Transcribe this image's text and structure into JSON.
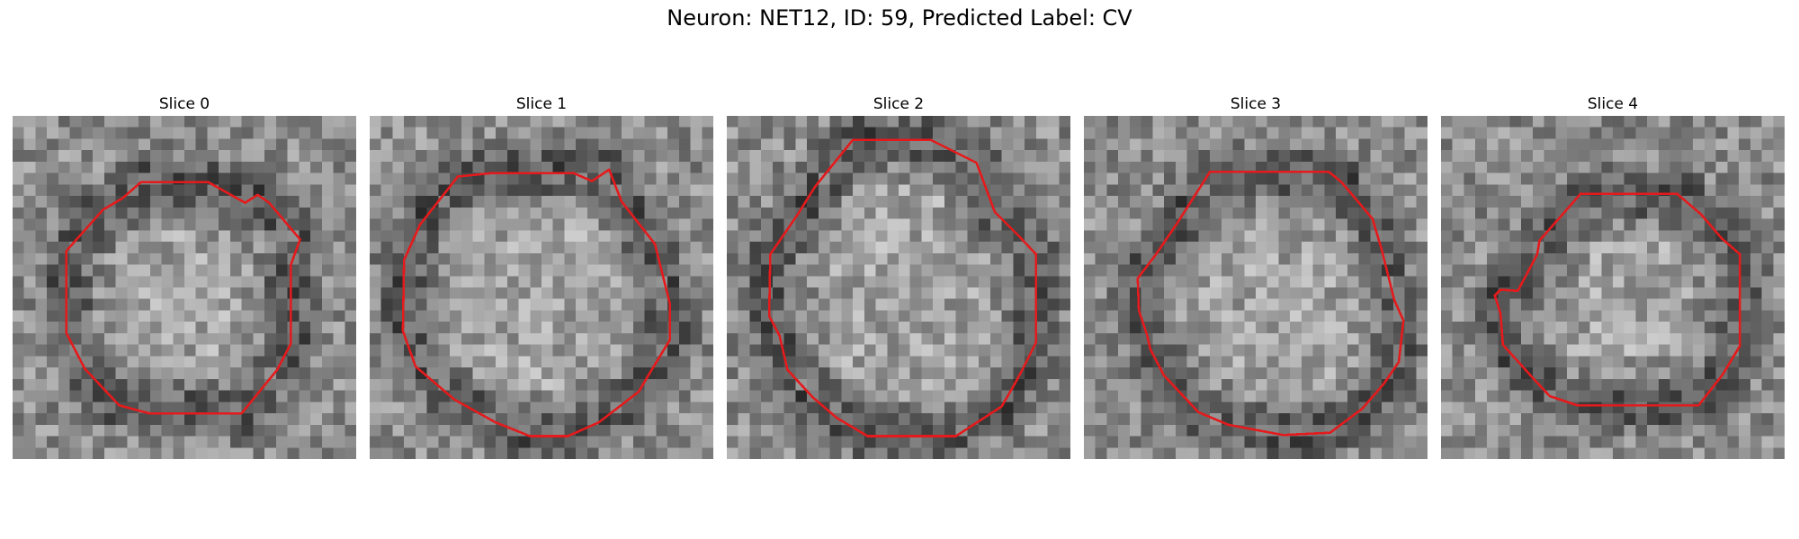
{
  "figure": {
    "title": "Neuron: NET12, ID: 59, Predicted Label: CV"
  },
  "colors": {
    "contour": "#e41a1c",
    "background": "#ffffff"
  },
  "panels": [
    {
      "title": "Slice 0"
    },
    {
      "title": "Slice 1"
    },
    {
      "title": "Slice 2"
    },
    {
      "title": "Slice 3"
    },
    {
      "title": "Slice 4"
    }
  ]
}
